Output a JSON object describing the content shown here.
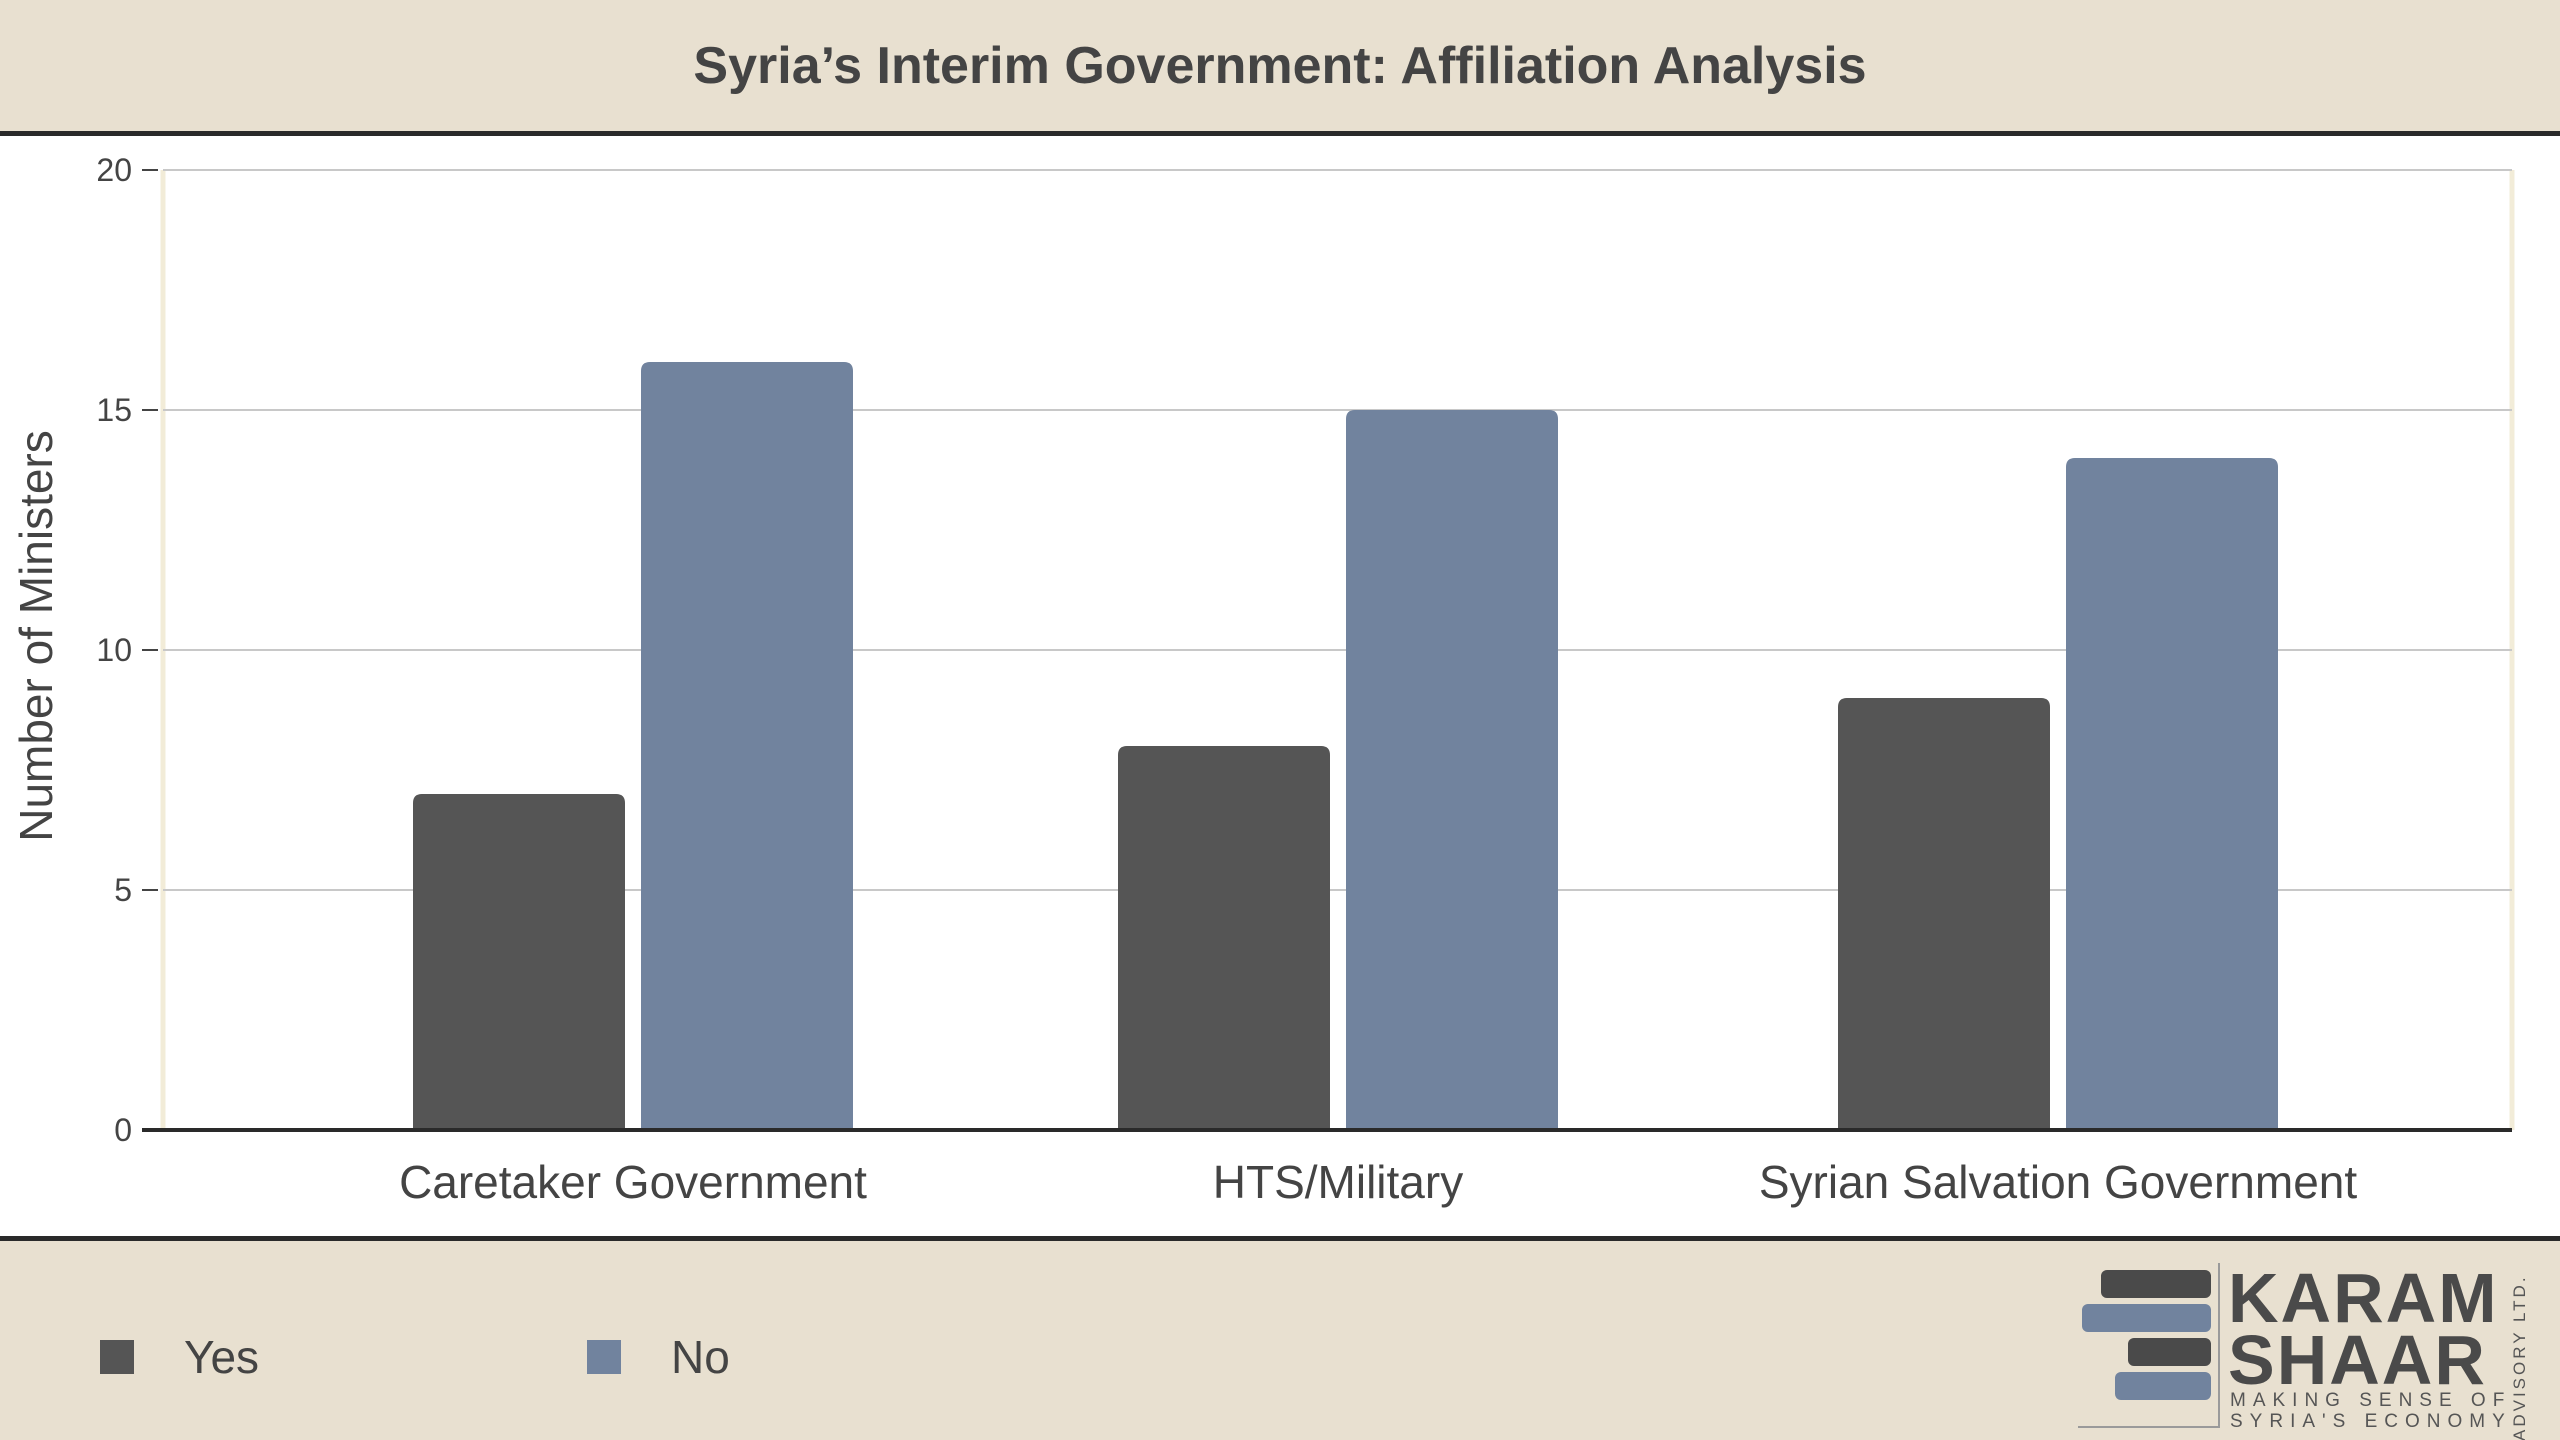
{
  "title": "Syria’s Interim Government: Affiliation Analysis",
  "chart_data": {
    "type": "bar",
    "title": "Syria’s Interim Government: Affiliation Analysis",
    "categories": [
      "Caretaker Government",
      "HTS/Military",
      "Syrian Salvation Government"
    ],
    "series": [
      {
        "name": "Yes",
        "values": [
          7,
          8,
          9
        ],
        "color": "#555555"
      },
      {
        "name": "No",
        "values": [
          16,
          15,
          14
        ],
        "color": "#71839e"
      }
    ],
    "xlabel": "",
    "ylabel": "Number of Ministers",
    "ylim": [
      0,
      20
    ],
    "yticks": [
      0,
      5,
      10,
      15,
      20
    ],
    "grid": true,
    "legend": "bottom-left"
  },
  "legend": {
    "items": [
      {
        "label": "Yes",
        "color": "#555555"
      },
      {
        "label": "No",
        "color": "#71839e"
      }
    ]
  },
  "logo": {
    "line1": "KARAM",
    "line2": "SHAAR",
    "tagline1": "MAKING SENSE OF",
    "tagline2": "SYRIA'S ECONOMY",
    "side": "ADVISORY LTD."
  }
}
